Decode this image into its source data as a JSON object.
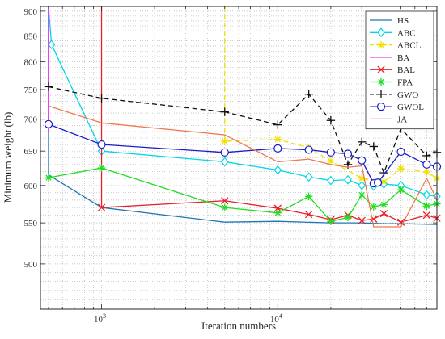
{
  "chart_data": {
    "type": "line",
    "title": "",
    "xlabel": "Iteration numbers",
    "ylabel": "Minimum weight (lb)",
    "x_scale": "log",
    "xlim": [
      450,
      80000
    ],
    "y_scale": "log",
    "ylim": [
      450,
      910
    ],
    "grid": true,
    "legend_position": "top-right",
    "x_ticks": [
      {
        "value": 1000,
        "base": "10",
        "exp": "3"
      },
      {
        "value": 10000,
        "base": "10",
        "exp": "4"
      }
    ],
    "y_ticks": [
      500,
      550,
      600,
      650,
      700,
      750,
      800,
      850,
      900
    ],
    "series": [
      {
        "name": "HS",
        "color": "#1f77b4",
        "dash": "solid",
        "marker": "none",
        "x": [
          500,
          500,
          1000,
          5000,
          10000,
          20000,
          30000,
          40000,
          50000,
          80000
        ],
        "y": [
          910,
          615,
          570,
          551,
          552,
          550,
          550,
          549,
          549,
          548
        ]
      },
      {
        "name": "ABC",
        "color": "#00d8e8",
        "dash": "solid",
        "marker": "diamond",
        "x": [
          500,
          520,
          1000,
          5000,
          10000,
          15000,
          20000,
          25000,
          30000,
          35000,
          40000,
          50000,
          70000,
          80000
        ],
        "y": [
          910,
          833,
          650,
          634,
          622,
          612,
          607,
          608,
          600,
          599,
          602,
          600,
          587,
          585
        ]
      },
      {
        "name": "ABCL",
        "color": "#f0e000",
        "dash": "dashed",
        "marker": "star",
        "x": [
          5000,
          5000,
          10000,
          15000,
          20000,
          30000,
          40000,
          50000,
          70000,
          80000
        ],
        "y": [
          910,
          665,
          668,
          655,
          635,
          610,
          605,
          624,
          619,
          610
        ]
      },
      {
        "name": "BA",
        "color": "#ff00ff",
        "dash": "solid",
        "marker": "none",
        "x": [
          500,
          500
        ],
        "y": [
          910,
          680
        ]
      },
      {
        "name": "BAL",
        "color": "#e8202a",
        "dash": "solid",
        "marker": "x",
        "x": [
          1000,
          1000,
          5000,
          10000,
          15000,
          20000,
          25000,
          30000,
          35000,
          40000,
          50000,
          70000,
          80000
        ],
        "y": [
          910,
          570,
          579,
          569,
          561,
          554,
          560,
          553,
          555,
          562,
          551,
          560,
          556
        ]
      },
      {
        "name": "FPA",
        "color": "#22dd22",
        "dash": "solid",
        "marker": "asterisk",
        "x": [
          500,
          1000,
          5000,
          10000,
          15000,
          20000,
          25000,
          30000,
          35000,
          40000,
          50000,
          70000,
          80000
        ],
        "y": [
          611,
          625,
          570,
          563,
          585,
          552,
          557,
          587,
          571,
          574,
          594,
          572,
          575
        ]
      },
      {
        "name": "GWO",
        "color": "#111111",
        "dash": "dashed",
        "marker": "plus",
        "x": [
          500,
          1000,
          5000,
          10000,
          15000,
          20000,
          25000,
          30000,
          35000,
          40000,
          50000,
          70000,
          80000
        ],
        "y": [
          755,
          735,
          712,
          691,
          742,
          698,
          630,
          664,
          657,
          618,
          685,
          643,
          648
        ]
      },
      {
        "name": "GWOL",
        "color": "#1a1acc",
        "dash": "solid",
        "marker": "circle",
        "x": [
          500,
          1000,
          5000,
          10000,
          15000,
          20000,
          25000,
          30000,
          35000,
          37000,
          50000,
          70000,
          80000
        ],
        "y": [
          692,
          660,
          648,
          654,
          652,
          648,
          646,
          636,
          603,
          604,
          649,
          630,
          627
        ]
      },
      {
        "name": "JA",
        "color": "#f07850",
        "dash": "solid",
        "marker": "none",
        "x": [
          500,
          1000,
          5000,
          10000,
          15000,
          20000,
          25000,
          30000,
          35000,
          40000,
          50000,
          70000,
          80000
        ],
        "y": [
          722,
          694,
          675,
          634,
          638,
          630,
          626,
          628,
          545,
          545,
          545,
          610,
          580
        ]
      }
    ]
  }
}
